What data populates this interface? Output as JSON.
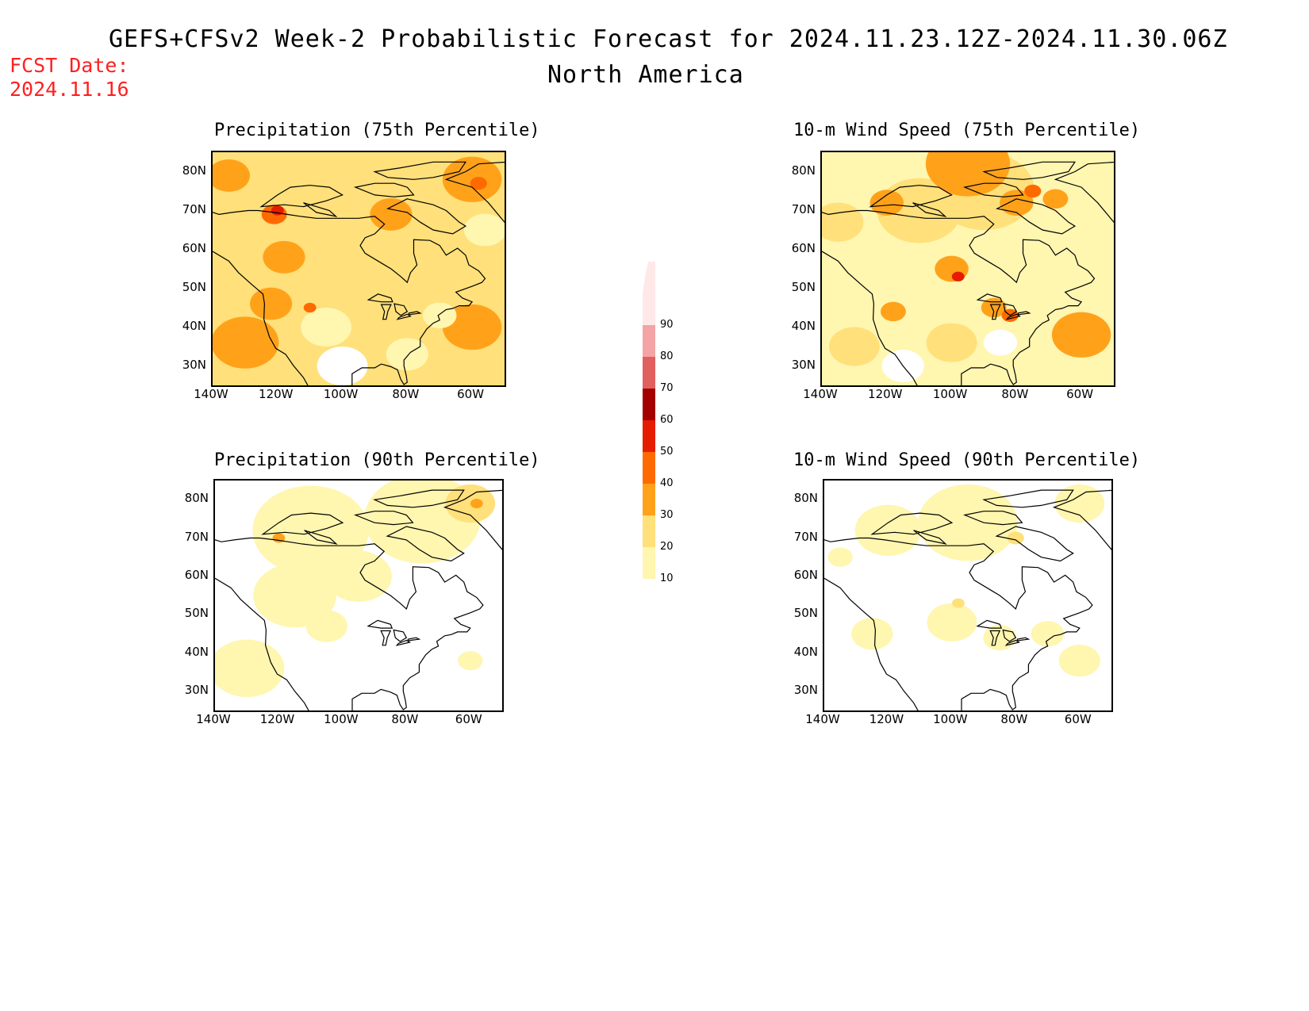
{
  "header": {
    "title": "GEFS+CFSv2 Week-2 Probabilistic Forecast for 2024.11.23.12Z-2024.11.30.06Z",
    "subtitle": "North America",
    "fcst_label": "FCST Date:",
    "fcst_date": "2024.11.16"
  },
  "colors": {
    "scale": [
      "#ffffff",
      "#fff6b0",
      "#ffe07a",
      "#ffa21a",
      "#ff6a00",
      "#e51c00",
      "#a50000",
      "#e06060",
      "#f4a4a4",
      "#ffe8e8"
    ]
  },
  "colorbar": {
    "levels": [
      "10",
      "20",
      "30",
      "40",
      "50",
      "60",
      "70",
      "80",
      "90"
    ]
  },
  "axes": {
    "lat_labels": [
      "80N",
      "70N",
      "60N",
      "50N",
      "40N",
      "30N"
    ],
    "lon_labels": [
      "140W",
      "120W",
      "100W",
      "80W",
      "60W"
    ]
  },
  "panels": [
    {
      "title": "Precipitation (75th Percentile)",
      "base_level": 2,
      "blobs": [
        {
          "lon": -130,
          "lat": 36,
          "r": 8,
          "level": 3
        },
        {
          "lon": -122,
          "lat": 46,
          "r": 5,
          "level": 3
        },
        {
          "lon": -118,
          "lat": 58,
          "r": 5,
          "level": 3
        },
        {
          "lon": -121,
          "lat": 69,
          "r": 3,
          "level": 4
        },
        {
          "lon": -120,
          "lat": 70,
          "r": 1.5,
          "level": 5
        },
        {
          "lon": -85,
          "lat": 69,
          "r": 5,
          "level": 3
        },
        {
          "lon": -60,
          "lat": 78,
          "r": 7,
          "level": 3
        },
        {
          "lon": -58,
          "lat": 77,
          "r": 2,
          "level": 4
        },
        {
          "lon": -60,
          "lat": 40,
          "r": 7,
          "level": 3
        },
        {
          "lon": -135,
          "lat": 79,
          "r": 5,
          "level": 3
        },
        {
          "lon": -100,
          "lat": 30,
          "r": 6,
          "level": 0
        },
        {
          "lon": -105,
          "lat": 40,
          "r": 6,
          "level": 1
        },
        {
          "lon": -80,
          "lat": 33,
          "r": 5,
          "level": 1
        },
        {
          "lon": -70,
          "lat": 43,
          "r": 4,
          "level": 1
        },
        {
          "lon": -56,
          "lat": 65,
          "r": 5,
          "level": 1
        },
        {
          "lon": -110,
          "lat": 45,
          "r": 1.5,
          "level": 4
        }
      ]
    },
    {
      "title": "10-m Wind Speed (75th Percentile)",
      "base_level": 1,
      "blobs": [
        {
          "lon": -90,
          "lat": 75,
          "r": 12,
          "level": 2
        },
        {
          "lon": -110,
          "lat": 70,
          "r": 10,
          "level": 2
        },
        {
          "lon": -95,
          "lat": 82,
          "r": 10,
          "level": 3
        },
        {
          "lon": -120,
          "lat": 72,
          "r": 4,
          "level": 3
        },
        {
          "lon": -80,
          "lat": 72,
          "r": 4,
          "level": 3
        },
        {
          "lon": -75,
          "lat": 75,
          "r": 2,
          "level": 4
        },
        {
          "lon": -68,
          "lat": 73,
          "r": 3,
          "level": 3
        },
        {
          "lon": -135,
          "lat": 67,
          "r": 6,
          "level": 2
        },
        {
          "lon": -60,
          "lat": 38,
          "r": 7,
          "level": 3
        },
        {
          "lon": -118,
          "lat": 44,
          "r": 3,
          "level": 3
        },
        {
          "lon": -100,
          "lat": 55,
          "r": 4,
          "level": 3
        },
        {
          "lon": -98,
          "lat": 53,
          "r": 1.5,
          "level": 5
        },
        {
          "lon": -87,
          "lat": 45,
          "r": 3,
          "level": 3
        },
        {
          "lon": -82,
          "lat": 43,
          "r": 2,
          "level": 4
        },
        {
          "lon": -100,
          "lat": 36,
          "r": 6,
          "level": 2
        },
        {
          "lon": -130,
          "lat": 35,
          "r": 6,
          "level": 2
        },
        {
          "lon": -115,
          "lat": 30,
          "r": 5,
          "level": 0
        },
        {
          "lon": -85,
          "lat": 36,
          "r": 4,
          "level": 0
        }
      ]
    },
    {
      "title": "Precipitation (90th Percentile)",
      "base_level": 0,
      "blobs": [
        {
          "lon": -110,
          "lat": 72,
          "r": 14,
          "level": 1
        },
        {
          "lon": -75,
          "lat": 75,
          "r": 14,
          "level": 1
        },
        {
          "lon": -130,
          "lat": 36,
          "r": 9,
          "level": 1
        },
        {
          "lon": -115,
          "lat": 55,
          "r": 10,
          "level": 1
        },
        {
          "lon": -95,
          "lat": 60,
          "r": 8,
          "level": 1
        },
        {
          "lon": -60,
          "lat": 79,
          "r": 6,
          "level": 2
        },
        {
          "lon": -58,
          "lat": 79,
          "r": 1.5,
          "level": 3
        },
        {
          "lon": -120,
          "lat": 70,
          "r": 1.5,
          "level": 3
        },
        {
          "lon": -105,
          "lat": 47,
          "r": 5,
          "level": 1
        },
        {
          "lon": -60,
          "lat": 38,
          "r": 3,
          "level": 1
        }
      ]
    },
    {
      "title": "10-m Wind Speed (90th Percentile)",
      "base_level": 0,
      "blobs": [
        {
          "lon": -95,
          "lat": 74,
          "r": 12,
          "level": 1
        },
        {
          "lon": -120,
          "lat": 72,
          "r": 8,
          "level": 1
        },
        {
          "lon": -60,
          "lat": 79,
          "r": 6,
          "level": 1
        },
        {
          "lon": -125,
          "lat": 45,
          "r": 5,
          "level": 1
        },
        {
          "lon": -100,
          "lat": 48,
          "r": 6,
          "level": 1
        },
        {
          "lon": -98,
          "lat": 53,
          "r": 1.5,
          "level": 2
        },
        {
          "lon": -85,
          "lat": 44,
          "r": 4,
          "level": 1
        },
        {
          "lon": -70,
          "lat": 45,
          "r": 4,
          "level": 1
        },
        {
          "lon": -60,
          "lat": 38,
          "r": 5,
          "level": 1
        },
        {
          "lon": -135,
          "lat": 65,
          "r": 3,
          "level": 1
        },
        {
          "lon": -80,
          "lat": 70,
          "r": 2,
          "level": 2
        }
      ]
    }
  ]
}
